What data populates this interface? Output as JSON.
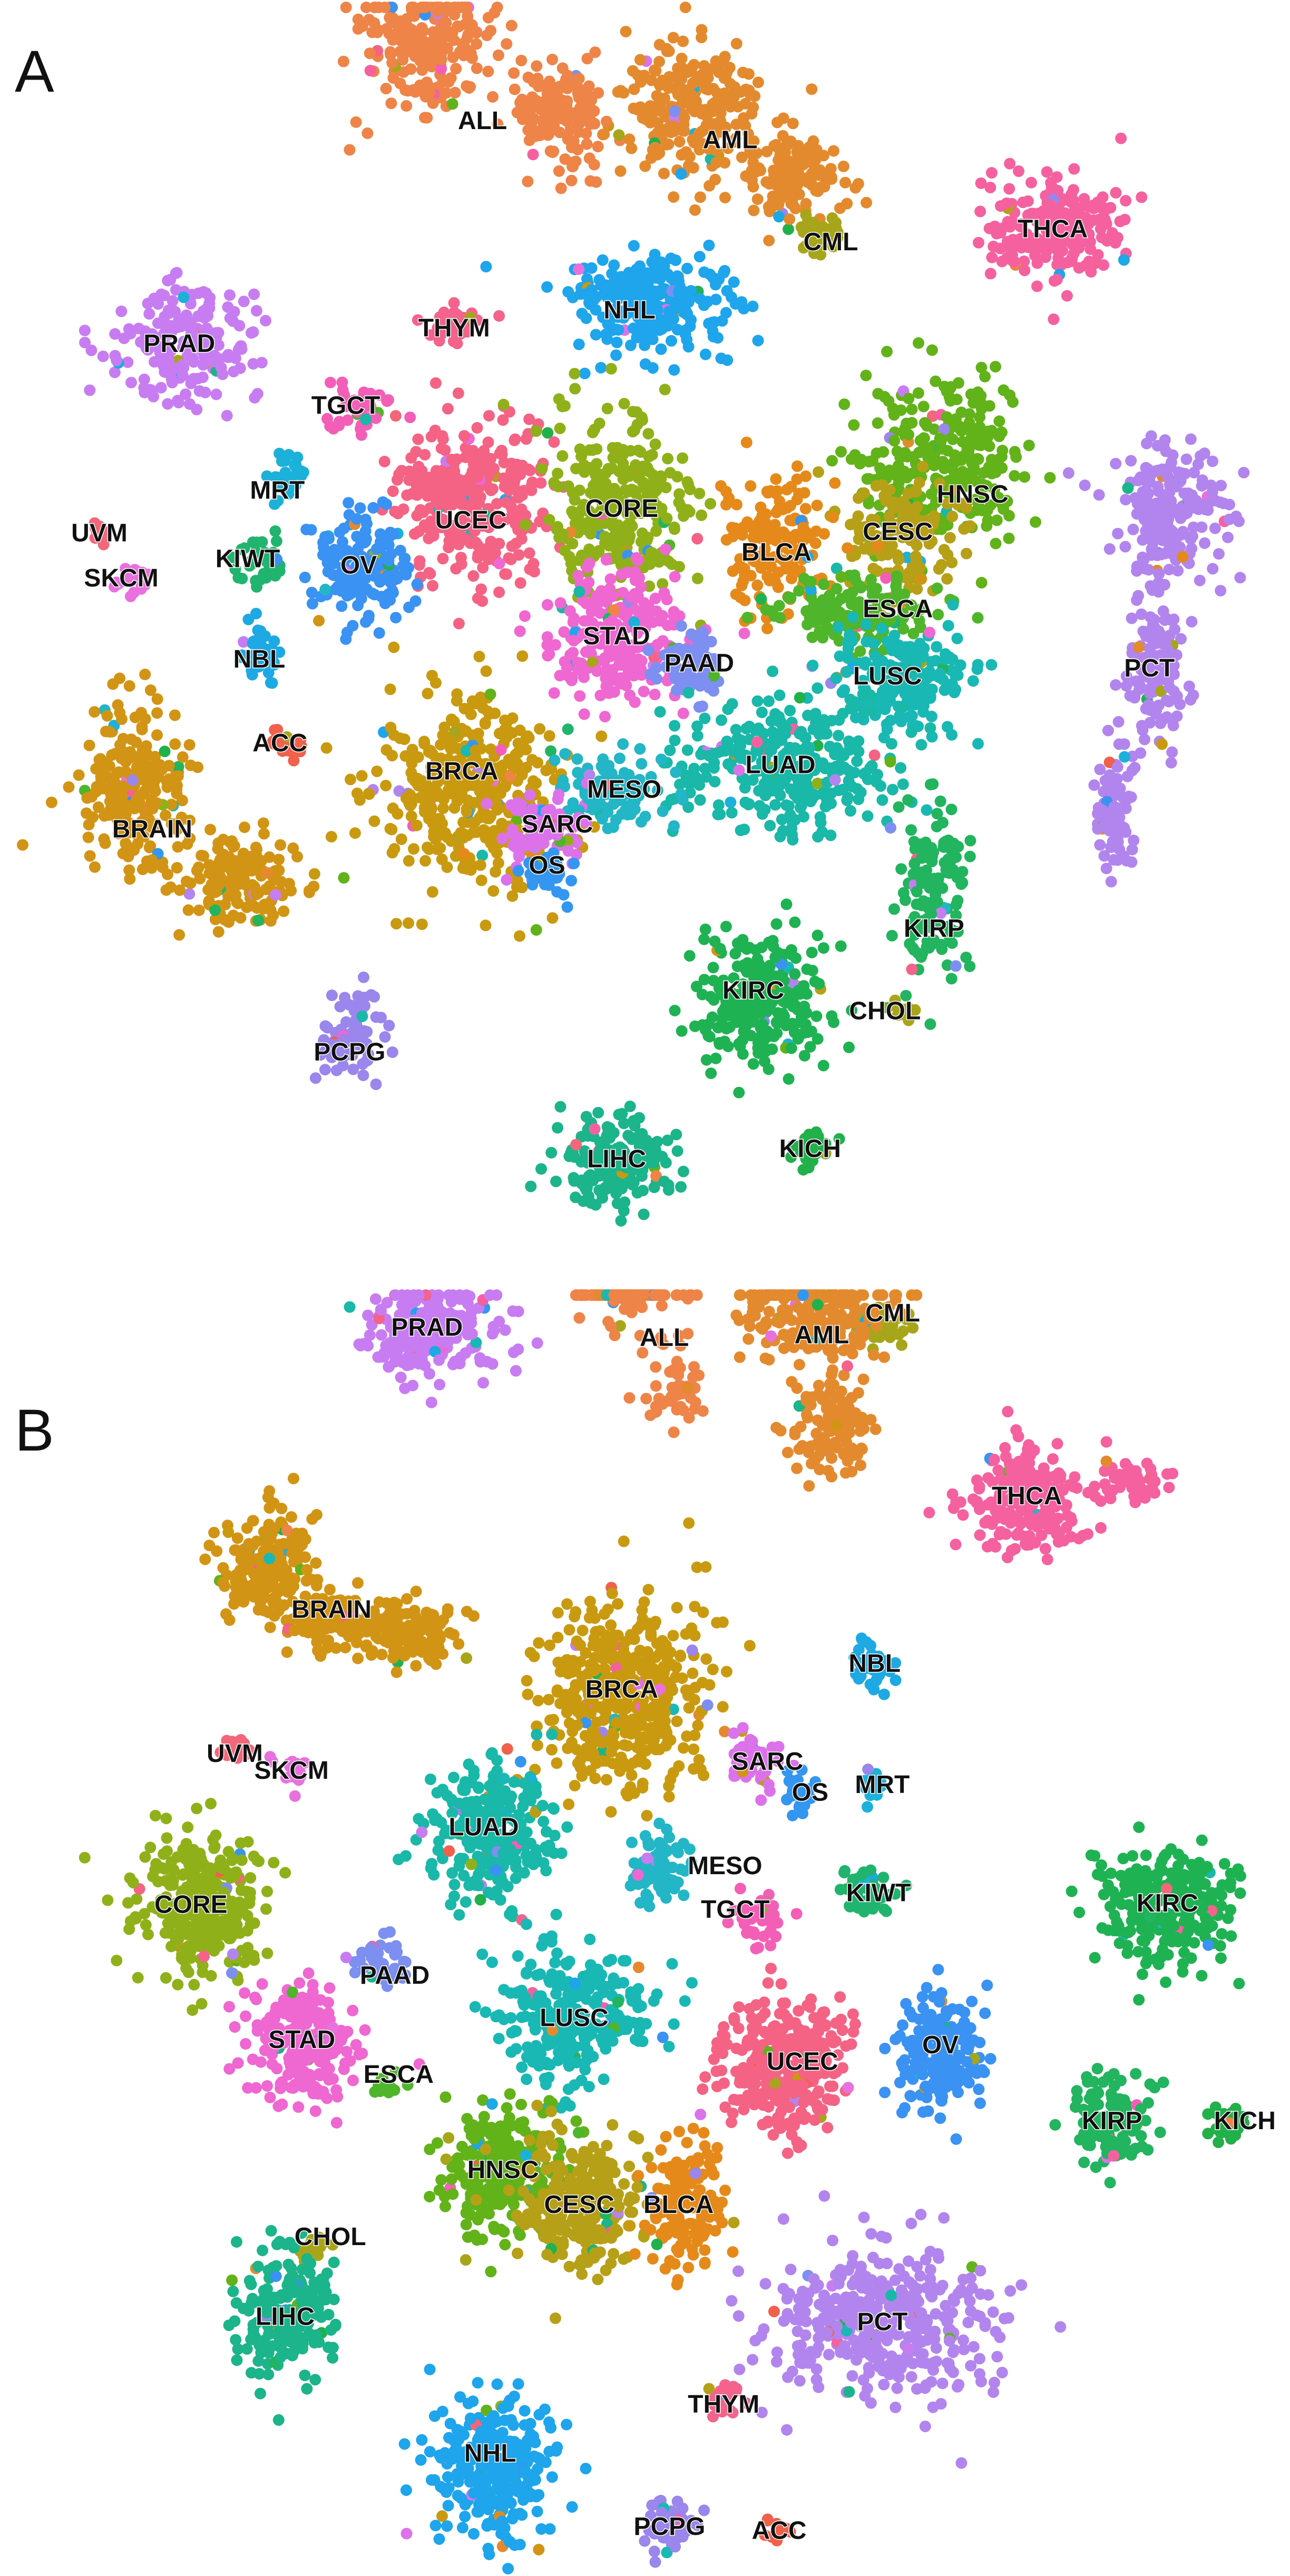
{
  "palette": {
    "ACC": "#f0614c",
    "ALL": "#ee8447",
    "AML": "#e48a2e",
    "BLCA": "#e58a1a",
    "BRAIN": "#d29414",
    "BRCA": "#c99a10",
    "CESC": "#b6a018",
    "CHOL": "#a9a51a",
    "CML": "#a7a61a",
    "CORE": "#90b01a",
    "ESCA": "#4fb52a",
    "HNSC": "#62b21a",
    "KICH": "#22b04a",
    "KIRC": "#1fb253",
    "KIRP": "#22b45e",
    "KIWT": "#21b46e",
    "LIHC": "#1cb48a",
    "LUAD": "#19b8a8",
    "LUSC": "#19b8b4",
    "MESO": "#23b6c6",
    "MRT": "#1cb1d9",
    "NBL": "#1ea9e4",
    "NHL": "#1ea5ec",
    "OS": "#3396f0",
    "OV": "#3a92f2",
    "PAAD": "#7d8ff0",
    "PCPG": "#9a86ec",
    "PCT": "#b285ee",
    "PRAD": "#c77df1",
    "SARC": "#dc72ea",
    "SKCM": "#e871dd",
    "STAD": "#ef67d1",
    "TGCT": "#f35fb6",
    "THCA": "#f5619f",
    "THYM": "#f3638c",
    "UCEC": "#f46384",
    "UVM": "#f2677a"
  },
  "panels": {
    "a": {
      "letter": "A"
    },
    "b": {
      "letter": "B"
    }
  },
  "chart_data": [
    {
      "panel": "A",
      "type": "scatter",
      "title": "",
      "xlabel": "",
      "ylabel": "",
      "axes": "none",
      "grid": false,
      "legend": "none",
      "cluster_labels": [
        {
          "name": "ALL",
          "x": 0.374,
          "y": 0.095
        },
        {
          "name": "AML",
          "x": 0.566,
          "y": 0.11
        },
        {
          "name": "CML",
          "x": 0.644,
          "y": 0.189
        },
        {
          "name": "THCA",
          "x": 0.816,
          "y": 0.179
        },
        {
          "name": "PRAD",
          "x": 0.139,
          "y": 0.268
        },
        {
          "name": "THYM",
          "x": 0.352,
          "y": 0.256
        },
        {
          "name": "NHL",
          "x": 0.488,
          "y": 0.242
        },
        {
          "name": "TGCT",
          "x": 0.268,
          "y": 0.316
        },
        {
          "name": "MRT",
          "x": 0.215,
          "y": 0.382
        },
        {
          "name": "UCEC",
          "x": 0.365,
          "y": 0.405
        },
        {
          "name": "CORE",
          "x": 0.482,
          "y": 0.396
        },
        {
          "name": "HNSC",
          "x": 0.754,
          "y": 0.385
        },
        {
          "name": "CESC",
          "x": 0.696,
          "y": 0.414
        },
        {
          "name": "BLCA",
          "x": 0.602,
          "y": 0.43
        },
        {
          "name": "UVM",
          "x": 0.077,
          "y": 0.415
        },
        {
          "name": "KIWT",
          "x": 0.192,
          "y": 0.435
        },
        {
          "name": "OV",
          "x": 0.278,
          "y": 0.44
        },
        {
          "name": "SKCM",
          "x": 0.094,
          "y": 0.45
        },
        {
          "name": "ESCA",
          "x": 0.696,
          "y": 0.474
        },
        {
          "name": "STAD",
          "x": 0.478,
          "y": 0.495
        },
        {
          "name": "NBL",
          "x": 0.201,
          "y": 0.513
        },
        {
          "name": "PAAD",
          "x": 0.542,
          "y": 0.516
        },
        {
          "name": "LUSC",
          "x": 0.688,
          "y": 0.526
        },
        {
          "name": "PCT",
          "x": 0.891,
          "y": 0.52
        },
        {
          "name": "ACC",
          "x": 0.217,
          "y": 0.578
        },
        {
          "name": "LUAD",
          "x": 0.605,
          "y": 0.595
        },
        {
          "name": "BRCA",
          "x": 0.358,
          "y": 0.6
        },
        {
          "name": "MESO",
          "x": 0.484,
          "y": 0.614
        },
        {
          "name": "BRAIN",
          "x": 0.118,
          "y": 0.645
        },
        {
          "name": "SARC",
          "x": 0.432,
          "y": 0.641
        },
        {
          "name": "OS",
          "x": 0.424,
          "y": 0.673
        },
        {
          "name": "KIRP",
          "x": 0.724,
          "y": 0.722
        },
        {
          "name": "KIRC",
          "x": 0.584,
          "y": 0.77
        },
        {
          "name": "CHOL",
          "x": 0.686,
          "y": 0.786
        },
        {
          "name": "PCPG",
          "x": 0.271,
          "y": 0.818
        },
        {
          "name": "KICH",
          "x": 0.628,
          "y": 0.893
        },
        {
          "name": "LIHC",
          "x": 0.478,
          "y": 0.901
        }
      ]
    },
    {
      "panel": "B",
      "type": "scatter",
      "title": "",
      "xlabel": "",
      "ylabel": "",
      "axes": "none",
      "grid": false,
      "legend": "none",
      "cluster_labels": [
        {
          "name": "CML",
          "x": 0.692,
          "y": 0.021
        },
        {
          "name": "PRAD",
          "x": 0.331,
          "y": 0.032
        },
        {
          "name": "ALL",
          "x": 0.515,
          "y": 0.04
        },
        {
          "name": "AML",
          "x": 0.637,
          "y": 0.038
        },
        {
          "name": "THCA",
          "x": 0.796,
          "y": 0.163
        },
        {
          "name": "BRAIN",
          "x": 0.257,
          "y": 0.251
        },
        {
          "name": "NBL",
          "x": 0.678,
          "y": 0.293
        },
        {
          "name": "BRCA",
          "x": 0.482,
          "y": 0.313
        },
        {
          "name": "UVM",
          "x": 0.182,
          "y": 0.363
        },
        {
          "name": "SKCM",
          "x": 0.226,
          "y": 0.376
        },
        {
          "name": "SARC",
          "x": 0.595,
          "y": 0.369
        },
        {
          "name": "MRT",
          "x": 0.684,
          "y": 0.387
        },
        {
          "name": "OS",
          "x": 0.628,
          "y": 0.393
        },
        {
          "name": "LUAD",
          "x": 0.375,
          "y": 0.42
        },
        {
          "name": "MESO",
          "x": 0.562,
          "y": 0.45
        },
        {
          "name": "TGCT",
          "x": 0.57,
          "y": 0.484
        },
        {
          "name": "KIWT",
          "x": 0.681,
          "y": 0.471
        },
        {
          "name": "KIRC",
          "x": 0.905,
          "y": 0.479
        },
        {
          "name": "CORE",
          "x": 0.148,
          "y": 0.48
        },
        {
          "name": "PAAD",
          "x": 0.306,
          "y": 0.535
        },
        {
          "name": "LUSC",
          "x": 0.445,
          "y": 0.568
        },
        {
          "name": "STAD",
          "x": 0.234,
          "y": 0.585
        },
        {
          "name": "UCEC",
          "x": 0.622,
          "y": 0.602
        },
        {
          "name": "OV",
          "x": 0.729,
          "y": 0.589
        },
        {
          "name": "ESCA",
          "x": 0.309,
          "y": 0.612
        },
        {
          "name": "KIRP",
          "x": 0.862,
          "y": 0.648
        },
        {
          "name": "KICH",
          "x": 0.965,
          "y": 0.648
        },
        {
          "name": "HNSC",
          "x": 0.39,
          "y": 0.686
        },
        {
          "name": "CESC",
          "x": 0.449,
          "y": 0.713
        },
        {
          "name": "BLCA",
          "x": 0.526,
          "y": 0.713
        },
        {
          "name": "CHOL",
          "x": 0.256,
          "y": 0.738
        },
        {
          "name": "LIHC",
          "x": 0.221,
          "y": 0.8
        },
        {
          "name": "PCT",
          "x": 0.684,
          "y": 0.804
        },
        {
          "name": "THYM",
          "x": 0.561,
          "y": 0.868
        },
        {
          "name": "NHL",
          "x": 0.38,
          "y": 0.906
        },
        {
          "name": "PCPG",
          "x": 0.519,
          "y": 0.963
        },
        {
          "name": "ACC",
          "x": 0.604,
          "y": 0.966
        }
      ]
    }
  ]
}
